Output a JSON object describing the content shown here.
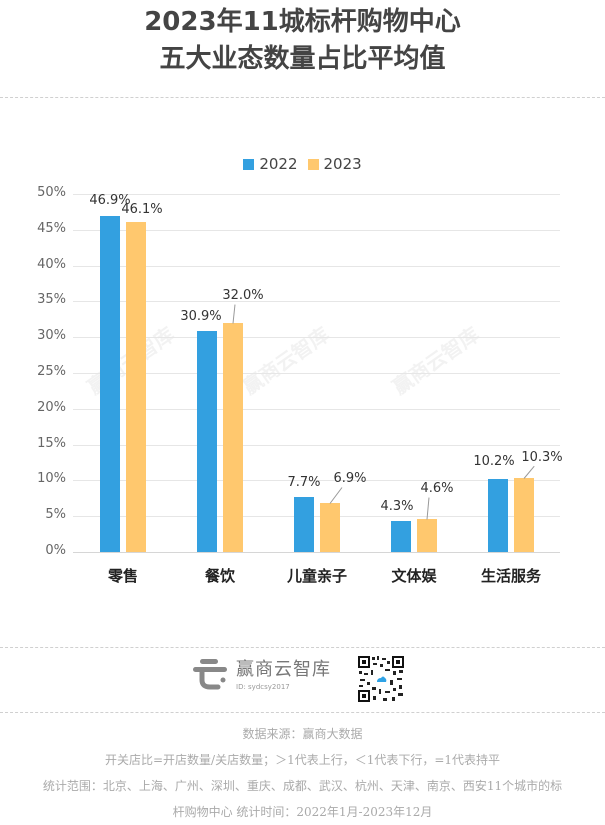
{
  "header": {
    "title_line1": "2023年11城标杆购物中心",
    "title_line2": "五大业态数量占比平均值"
  },
  "legend": [
    {
      "label": "2022",
      "color": "#33A0E0"
    },
    {
      "label": "2023",
      "color": "#FFC86E"
    }
  ],
  "y_ticks": [
    "50%",
    "45%",
    "40%",
    "35%",
    "30%",
    "25%",
    "20%",
    "15%",
    "10%",
    "5%",
    "0%"
  ],
  "categories": [
    {
      "label": "零售",
      "v2022": "46.9%",
      "v2023": "46.1%"
    },
    {
      "label": "餐饮",
      "v2022": "30.9%",
      "v2023": "32.0%"
    },
    {
      "label": "儿童亲子",
      "v2022": "7.7%",
      "v2023": "6.9%"
    },
    {
      "label": "文体娱",
      "v2022": "4.3%",
      "v2023": "4.6%"
    },
    {
      "label": "生活服务",
      "v2022": "10.2%",
      "v2023": "10.3%"
    }
  ],
  "watermark": "赢商云智库",
  "brand": {
    "name": "赢商云智库",
    "id": "ID: sydcsy2017"
  },
  "footer": {
    "source": "数据来源：赢商大数据",
    "note": "开关店比=开店数量/关店数量；＞1代表上行，＜1代表下行，=1代表持平",
    "scope_line1": "统计范围：北京、上海、广州、深圳、重庆、成都、武汉、杭州、天津、南京、西安11个城市的标",
    "scope_line2": "杆购物中心 统计时间：2022年1月-2023年12月"
  },
  "chart_data": {
    "type": "bar",
    "title": "2023年11城标杆购物中心五大业态数量占比平均值",
    "categories": [
      "零售",
      "餐饮",
      "儿童亲子",
      "文体娱",
      "生活服务"
    ],
    "series": [
      {
        "name": "2022",
        "color": "#33A0E0",
        "values": [
          46.9,
          30.9,
          7.7,
          4.3,
          10.2
        ]
      },
      {
        "name": "2023",
        "color": "#FFC86E",
        "values": [
          46.1,
          32.0,
          6.9,
          4.6,
          10.3
        ]
      }
    ],
    "xlabel": "",
    "ylabel": "",
    "ylim": [
      0,
      50
    ],
    "yticks": [
      0,
      5,
      10,
      15,
      20,
      25,
      30,
      35,
      40,
      45,
      50
    ],
    "ytick_format": "percent",
    "grid": true,
    "legend_position": "top"
  }
}
